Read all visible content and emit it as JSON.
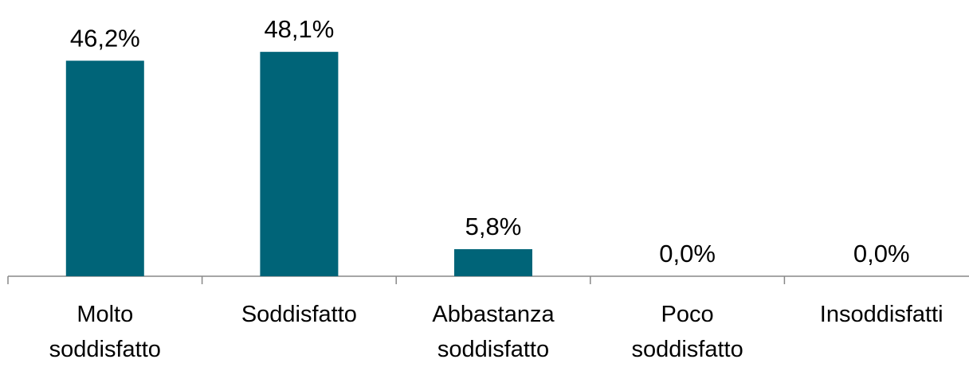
{
  "chart_data": {
    "type": "bar",
    "categories": [
      "Molto soddisfatto",
      "Soddisfatto",
      "Abbastanza soddisfatto",
      "Poco soddisfatto",
      "Insoddisfatti"
    ],
    "values": [
      46.2,
      48.1,
      5.8,
      0,
      0
    ],
    "value_labels": [
      "46,2%",
      "48,1%",
      "5,8%",
      "0,0%",
      "0,0%"
    ],
    "color": "#006478",
    "ylim": [
      0,
      50
    ]
  }
}
